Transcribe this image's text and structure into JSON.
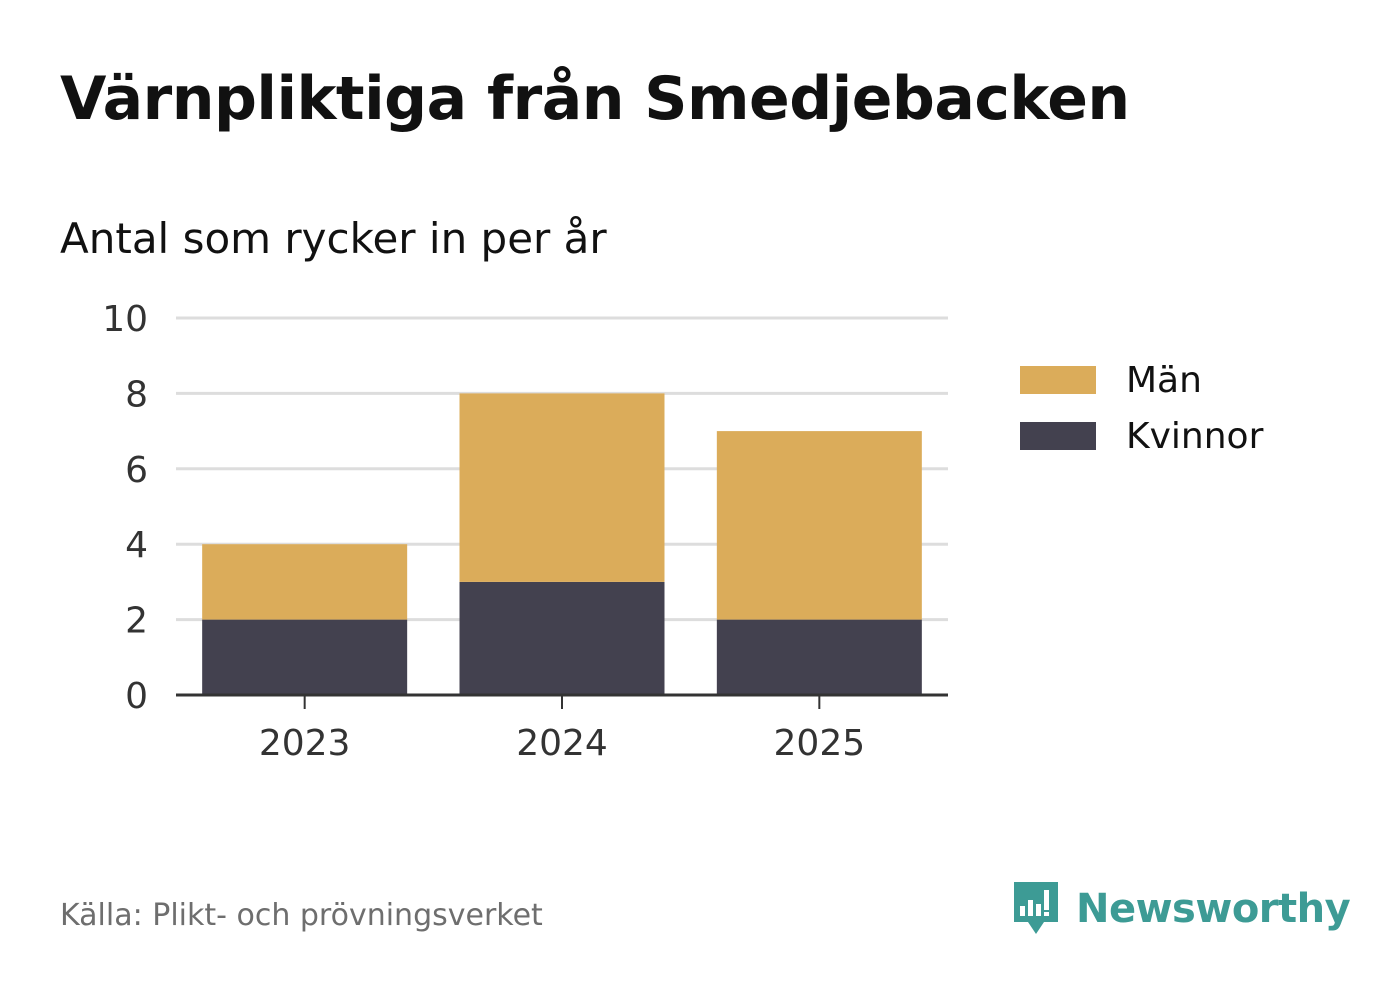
{
  "title": "Värnpliktiga från Smedjebacken",
  "subtitle": "Antal som rycker in per år",
  "source": "Källa: Plikt- och prövningsverket",
  "brand": {
    "name": "Newsworthy",
    "icon": "newsworthy-logo-icon",
    "color": "#3d9b95"
  },
  "chart_data": {
    "type": "bar",
    "stacked": true,
    "categories": [
      "2023",
      "2024",
      "2025"
    ],
    "series": [
      {
        "name": "Kvinnor",
        "values": [
          2,
          3,
          2
        ],
        "color": "#43414f"
      },
      {
        "name": "Män",
        "values": [
          2,
          5,
          5
        ],
        "color": "#dbac5a"
      }
    ],
    "ylim": [
      0,
      10
    ],
    "yticks": [
      0,
      2,
      4,
      6,
      8,
      10
    ],
    "grid": true,
    "legend_position": "right",
    "legend": [
      "Män",
      "Kvinnor"
    ],
    "title": "Antal som rycker in per år",
    "xlabel": "",
    "ylabel": ""
  }
}
